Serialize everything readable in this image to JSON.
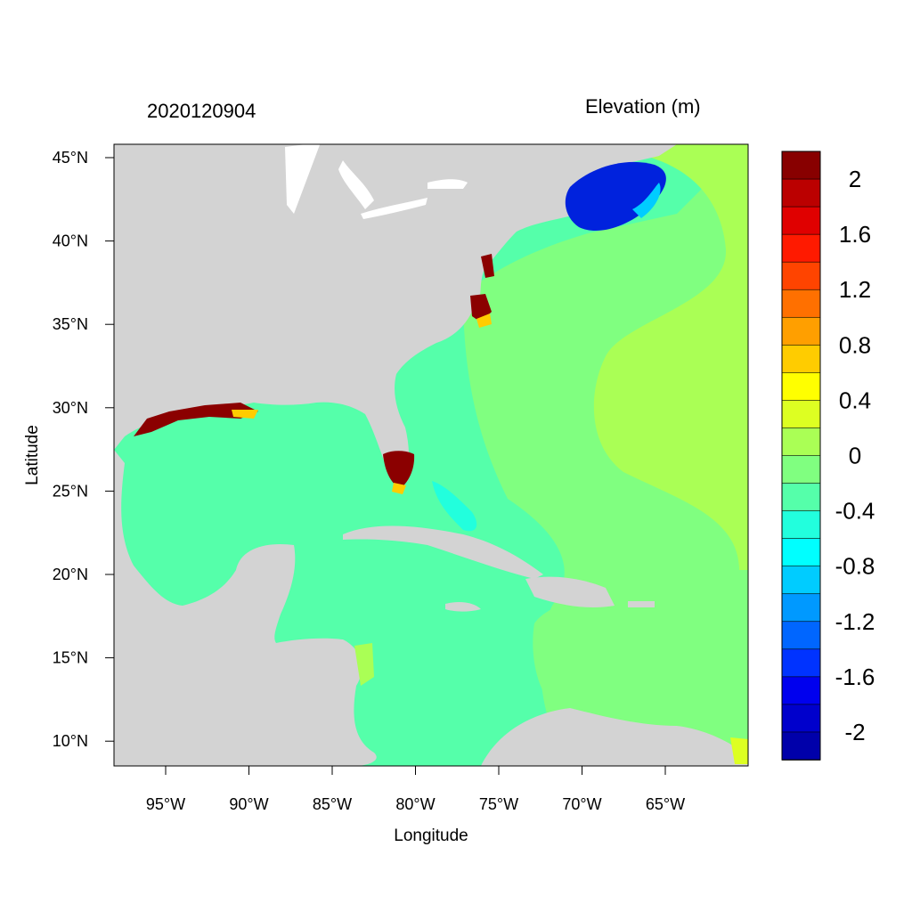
{
  "title_left": "2020120904",
  "title_right": "Elevation (m)",
  "x_axis": {
    "label": "Longitude",
    "ticks": [
      {
        "lon": -95,
        "label": "95°W"
      },
      {
        "lon": -90,
        "label": "90°W"
      },
      {
        "lon": -85,
        "label": "85°W"
      },
      {
        "lon": -80,
        "label": "80°W"
      },
      {
        "lon": -75,
        "label": "75°W"
      },
      {
        "lon": -70,
        "label": "70°W"
      },
      {
        "lon": -65,
        "label": "65°W"
      }
    ]
  },
  "y_axis": {
    "label": "Latitude",
    "ticks": [
      {
        "lat": 45,
        "label": "45°N"
      },
      {
        "lat": 40,
        "label": "40°N"
      },
      {
        "lat": 35,
        "label": "35°N"
      },
      {
        "lat": 30,
        "label": "30°N"
      },
      {
        "lat": 25,
        "label": "25°N"
      },
      {
        "lat": 20,
        "label": "20°N"
      },
      {
        "lat": 15,
        "label": "15°N"
      },
      {
        "lat": 10,
        "label": "10°N"
      }
    ]
  },
  "colorbar": {
    "colors_top_to_bottom": [
      "#880000",
      "#bb0000",
      "#e00000",
      "#ff1a00",
      "#ff4400",
      "#ff7000",
      "#ff9f00",
      "#ffcc00",
      "#ffff00",
      "#ddff22",
      "#aaff55",
      "#80ff80",
      "#55ffaa",
      "#22ffdd",
      "#00ffff",
      "#00ccff",
      "#0099ff",
      "#0066ff",
      "#0033ff",
      "#0000ee",
      "#0000cc",
      "#0000aa"
    ],
    "labels": [
      "2",
      "1.6",
      "1.2",
      "0.8",
      "0.4",
      "0",
      "-0.4",
      "-0.8",
      "-1.2",
      "-1.6",
      "-2"
    ]
  },
  "colors": {
    "land": "#d3d3d3",
    "base_sea": "#55ffaa",
    "east_sea": "#80ff80",
    "far_east": "#aaff55",
    "deep_negative": "#0022dd",
    "positive_surge": "#8b0000"
  }
}
